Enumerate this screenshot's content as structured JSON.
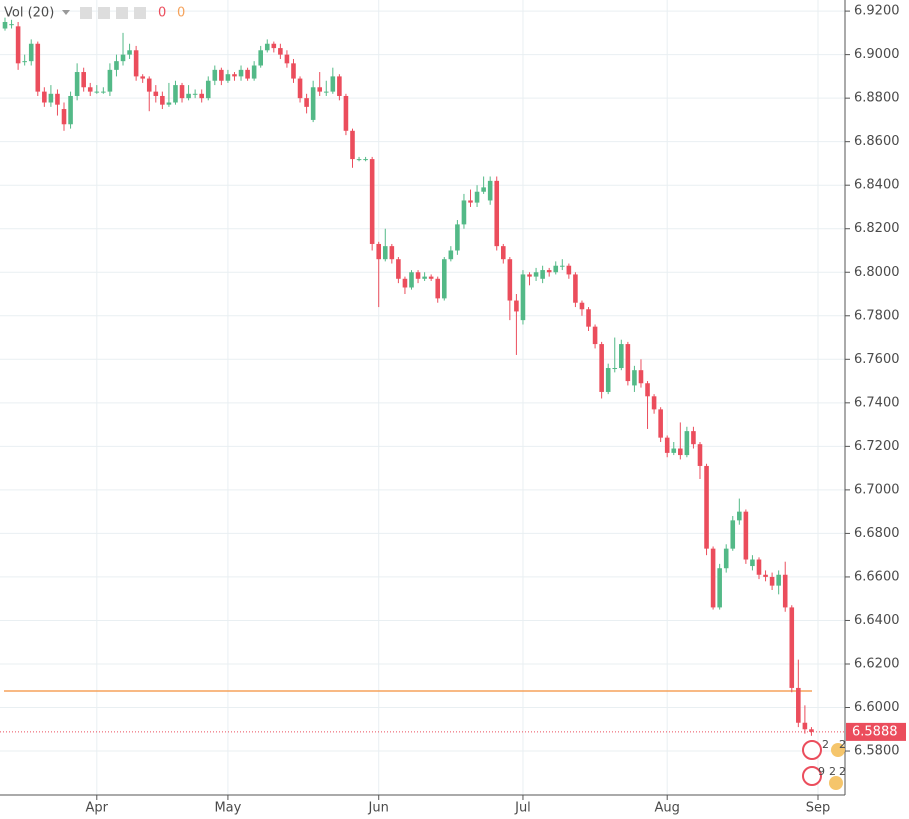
{
  "chart_data": {
    "type": "candlestick",
    "legend": {
      "label": "Vol (20)",
      "values": [
        0,
        0
      ],
      "colors": [
        "#eb4d5c",
        "#f5a25b"
      ]
    },
    "categories": [
      null,
      null,
      null,
      null,
      null,
      null,
      null,
      null,
      null,
      null,
      null,
      null,
      null,
      null,
      "Apr",
      null,
      null,
      null,
      null,
      null,
      null,
      null,
      null,
      null,
      null,
      null,
      null,
      null,
      null,
      null,
      null,
      null,
      null,
      null,
      "May",
      null,
      null,
      null,
      null,
      null,
      null,
      null,
      null,
      null,
      null,
      null,
      null,
      null,
      null,
      null,
      null,
      null,
      null,
      null,
      null,
      null,
      null,
      "Jun",
      null,
      null,
      null,
      null,
      null,
      null,
      null,
      null,
      null,
      null,
      null,
      null,
      null,
      null,
      null,
      null,
      null,
      null,
      null,
      null,
      null,
      "Jul",
      null,
      null,
      null,
      null,
      null,
      null,
      null,
      null,
      null,
      null,
      null,
      null,
      null,
      null,
      null,
      null,
      null,
      null,
      null,
      null,
      null,
      "Aug",
      null,
      null,
      null,
      null,
      null,
      null,
      null,
      null,
      null,
      null,
      null,
      null,
      null,
      null,
      null,
      null,
      null,
      null,
      null,
      null,
      null,
      null,
      "Sep"
    ],
    "open": [
      6.912,
      6.914,
      6.913,
      6.897,
      6.897,
      6.905,
      6.883,
      6.878,
      6.882,
      6.875,
      6.868,
      6.881,
      6.892,
      6.885,
      6.883,
      6.883,
      6.883,
      6.893,
      6.897,
      6.9,
      6.902,
      6.89,
      6.889,
      6.883,
      6.881,
      6.877,
      6.878,
      6.886,
      6.88,
      6.882,
      6.882,
      6.88,
      6.888,
      6.893,
      6.888,
      6.891,
      6.89,
      6.893,
      6.889,
      6.895,
      6.902,
      6.905,
      6.903,
      6.9,
      6.896,
      6.889,
      6.88,
      6.87,
      6.885,
      6.883,
      6.883,
      6.89,
      6.881,
      6.865,
      6.852,
      6.852,
      6.852,
      6.813,
      6.806,
      6.812,
      6.806,
      6.797,
      6.793,
      6.8,
      6.797,
      6.798,
      6.797,
      6.788,
      6.806,
      6.81,
      6.822,
      6.833,
      6.832,
      6.837,
      6.833,
      6.842,
      6.812,
      6.806,
      6.787,
      6.778,
      6.799,
      6.798,
      6.797,
      6.801,
      6.8,
      6.803,
      6.803,
      6.799,
      6.786,
      6.783,
      6.775,
      6.767,
      6.745,
      6.756,
      6.756,
      6.767,
      6.748,
      6.755,
      6.749,
      6.743,
      6.737,
      6.724,
      6.717,
      6.719,
      6.716,
      6.727,
      6.721,
      6.711,
      6.673,
      6.646,
      6.664,
      6.673,
      6.686,
      6.69,
      6.665,
      6.668,
      6.661,
      6.66,
      6.656,
      6.661,
      6.646,
      6.609,
      6.593,
      6.59,
      null
    ],
    "high": [
      6.917,
      6.916,
      6.915,
      6.9,
      6.907,
      6.906,
      6.885,
      6.886,
      6.884,
      6.878,
      6.883,
      6.896,
      6.894,
      6.887,
      6.886,
      6.885,
      6.896,
      6.9,
      6.91,
      6.905,
      6.904,
      6.891,
      6.89,
      6.886,
      6.883,
      6.887,
      6.888,
      6.887,
      6.886,
      6.884,
      6.884,
      6.89,
      6.895,
      6.894,
      6.893,
      6.892,
      6.895,
      6.894,
      6.897,
      6.904,
      6.907,
      6.906,
      6.905,
      6.902,
      6.898,
      6.89,
      6.882,
      6.888,
      6.892,
      6.888,
      6.894,
      6.891,
      6.882,
      6.866,
      6.853,
      6.853,
      6.853,
      6.814,
      6.82,
      6.813,
      6.807,
      6.798,
      6.801,
      6.801,
      6.8,
      6.799,
      6.798,
      6.807,
      6.812,
      6.824,
      6.836,
      6.838,
      6.84,
      6.844,
      6.844,
      6.844,
      6.813,
      6.807,
      6.79,
      6.801,
      6.8,
      6.802,
      6.803,
      6.802,
      6.805,
      6.806,
      6.804,
      6.8,
      6.787,
      6.784,
      6.776,
      6.768,
      6.758,
      6.77,
      6.769,
      6.768,
      6.757,
      6.76,
      6.75,
      6.744,
      6.738,
      6.725,
      6.722,
      6.731,
      6.729,
      6.729,
      6.722,
      6.712,
      6.674,
      6.666,
      6.675,
      6.688,
      6.696,
      6.691,
      6.67,
      6.669,
      6.663,
      6.662,
      6.663,
      6.667,
      6.647,
      6.622,
      6.601,
      6.591,
      null
    ],
    "low": [
      6.911,
      6.912,
      6.893,
      6.895,
      6.895,
      6.881,
      6.876,
      6.876,
      6.872,
      6.865,
      6.866,
      6.879,
      6.883,
      6.881,
      6.882,
      6.882,
      6.881,
      6.89,
      6.895,
      6.898,
      6.888,
      6.887,
      6.874,
      6.878,
      6.875,
      6.876,
      6.877,
      6.878,
      6.879,
      6.88,
      6.878,
      6.879,
      6.886,
      6.886,
      6.887,
      6.888,
      6.888,
      6.888,
      6.888,
      6.894,
      6.901,
      6.901,
      6.898,
      6.894,
      6.887,
      6.878,
      6.873,
      6.869,
      6.881,
      6.881,
      6.882,
      6.879,
      6.863,
      6.848,
      6.851,
      6.851,
      6.81,
      6.784,
      6.805,
      6.804,
      6.795,
      6.79,
      6.792,
      6.795,
      6.796,
      6.796,
      6.786,
      6.787,
      6.805,
      6.808,
      6.82,
      6.83,
      6.83,
      6.836,
      6.831,
      6.81,
      6.804,
      6.778,
      6.762,
      6.776,
      6.794,
      6.796,
      6.795,
      6.798,
      6.799,
      6.801,
      6.797,
      6.784,
      6.78,
      6.773,
      6.765,
      6.742,
      6.744,
      6.754,
      6.755,
      6.748,
      6.745,
      6.747,
      6.728,
      6.735,
      6.722,
      6.715,
      6.716,
      6.714,
      6.715,
      6.719,
      6.705,
      6.67,
      6.645,
      6.645,
      6.662,
      6.672,
      6.684,
      6.666,
      6.663,
      6.659,
      6.658,
      6.654,
      6.652,
      6.644,
      6.607,
      6.591,
      6.588,
      6.587,
      null
    ],
    "close": [
      6.915,
      6.914,
      6.896,
      6.897,
      6.905,
      6.883,
      6.878,
      6.882,
      6.877,
      6.868,
      6.881,
      6.892,
      6.885,
      6.883,
      6.883,
      6.883,
      6.893,
      6.897,
      6.9,
      6.902,
      6.89,
      6.889,
      6.883,
      6.881,
      6.877,
      6.878,
      6.886,
      6.88,
      6.882,
      6.882,
      6.88,
      6.888,
      6.893,
      6.888,
      6.891,
      6.89,
      6.893,
      6.889,
      6.895,
      6.902,
      6.905,
      6.903,
      6.9,
      6.896,
      6.889,
      6.88,
      6.876,
      6.885,
      6.883,
      6.883,
      6.89,
      6.881,
      6.865,
      6.852,
      6.852,
      6.852,
      6.813,
      6.806,
      6.812,
      6.806,
      6.797,
      6.793,
      6.8,
      6.797,
      6.798,
      6.797,
      6.788,
      6.806,
      6.81,
      6.822,
      6.833,
      6.832,
      6.837,
      6.839,
      6.842,
      6.812,
      6.806,
      6.787,
      6.782,
      6.799,
      6.798,
      6.8,
      6.801,
      6.8,
      6.803,
      6.803,
      6.799,
      6.786,
      6.783,
      6.775,
      6.767,
      6.745,
      6.756,
      6.756,
      6.767,
      6.75,
      6.755,
      6.749,
      6.743,
      6.737,
      6.724,
      6.717,
      6.719,
      6.716,
      6.727,
      6.721,
      6.711,
      6.673,
      6.646,
      6.664,
      6.673,
      6.686,
      6.69,
      6.668,
      6.668,
      6.661,
      6.66,
      6.656,
      6.661,
      6.646,
      6.609,
      6.593,
      6.59,
      6.5888,
      null
    ],
    "up_color": "#53b987",
    "down_color": "#eb4d5c",
    "ylim": [
      6.5598,
      6.9251
    ],
    "yticks": [
      {
        "value": 6.58,
        "label": "6.5800"
      },
      {
        "value": 6.6,
        "label": "6.6000"
      },
      {
        "value": 6.62,
        "label": "6.6200"
      },
      {
        "value": 6.64,
        "label": "6.6400"
      },
      {
        "value": 6.66,
        "label": "6.6600"
      },
      {
        "value": 6.68,
        "label": "6.6800"
      },
      {
        "value": 6.7,
        "label": "6.7000"
      },
      {
        "value": 6.72,
        "label": "6.7200"
      },
      {
        "value": 6.74,
        "label": "6.7400"
      },
      {
        "value": 6.76,
        "label": "6.7600"
      },
      {
        "value": 6.78,
        "label": "6.7800"
      },
      {
        "value": 6.8,
        "label": "6.8000"
      },
      {
        "value": 6.82,
        "label": "6.8200"
      },
      {
        "value": 6.84,
        "label": "6.8400"
      },
      {
        "value": 6.86,
        "label": "6.8600"
      },
      {
        "value": 6.88,
        "label": "6.8800"
      },
      {
        "value": 6.9,
        "label": "6.9000"
      },
      {
        "value": 6.92,
        "label": "6.9200"
      }
    ],
    "grid": true,
    "reference_line": {
      "value": 6.6076,
      "color": "#f5a25b"
    },
    "last_price": {
      "value": 6.5888,
      "color": "#eb4d5c"
    },
    "event_labels": [
      "2",
      "2",
      "9",
      "2",
      "2"
    ]
  }
}
